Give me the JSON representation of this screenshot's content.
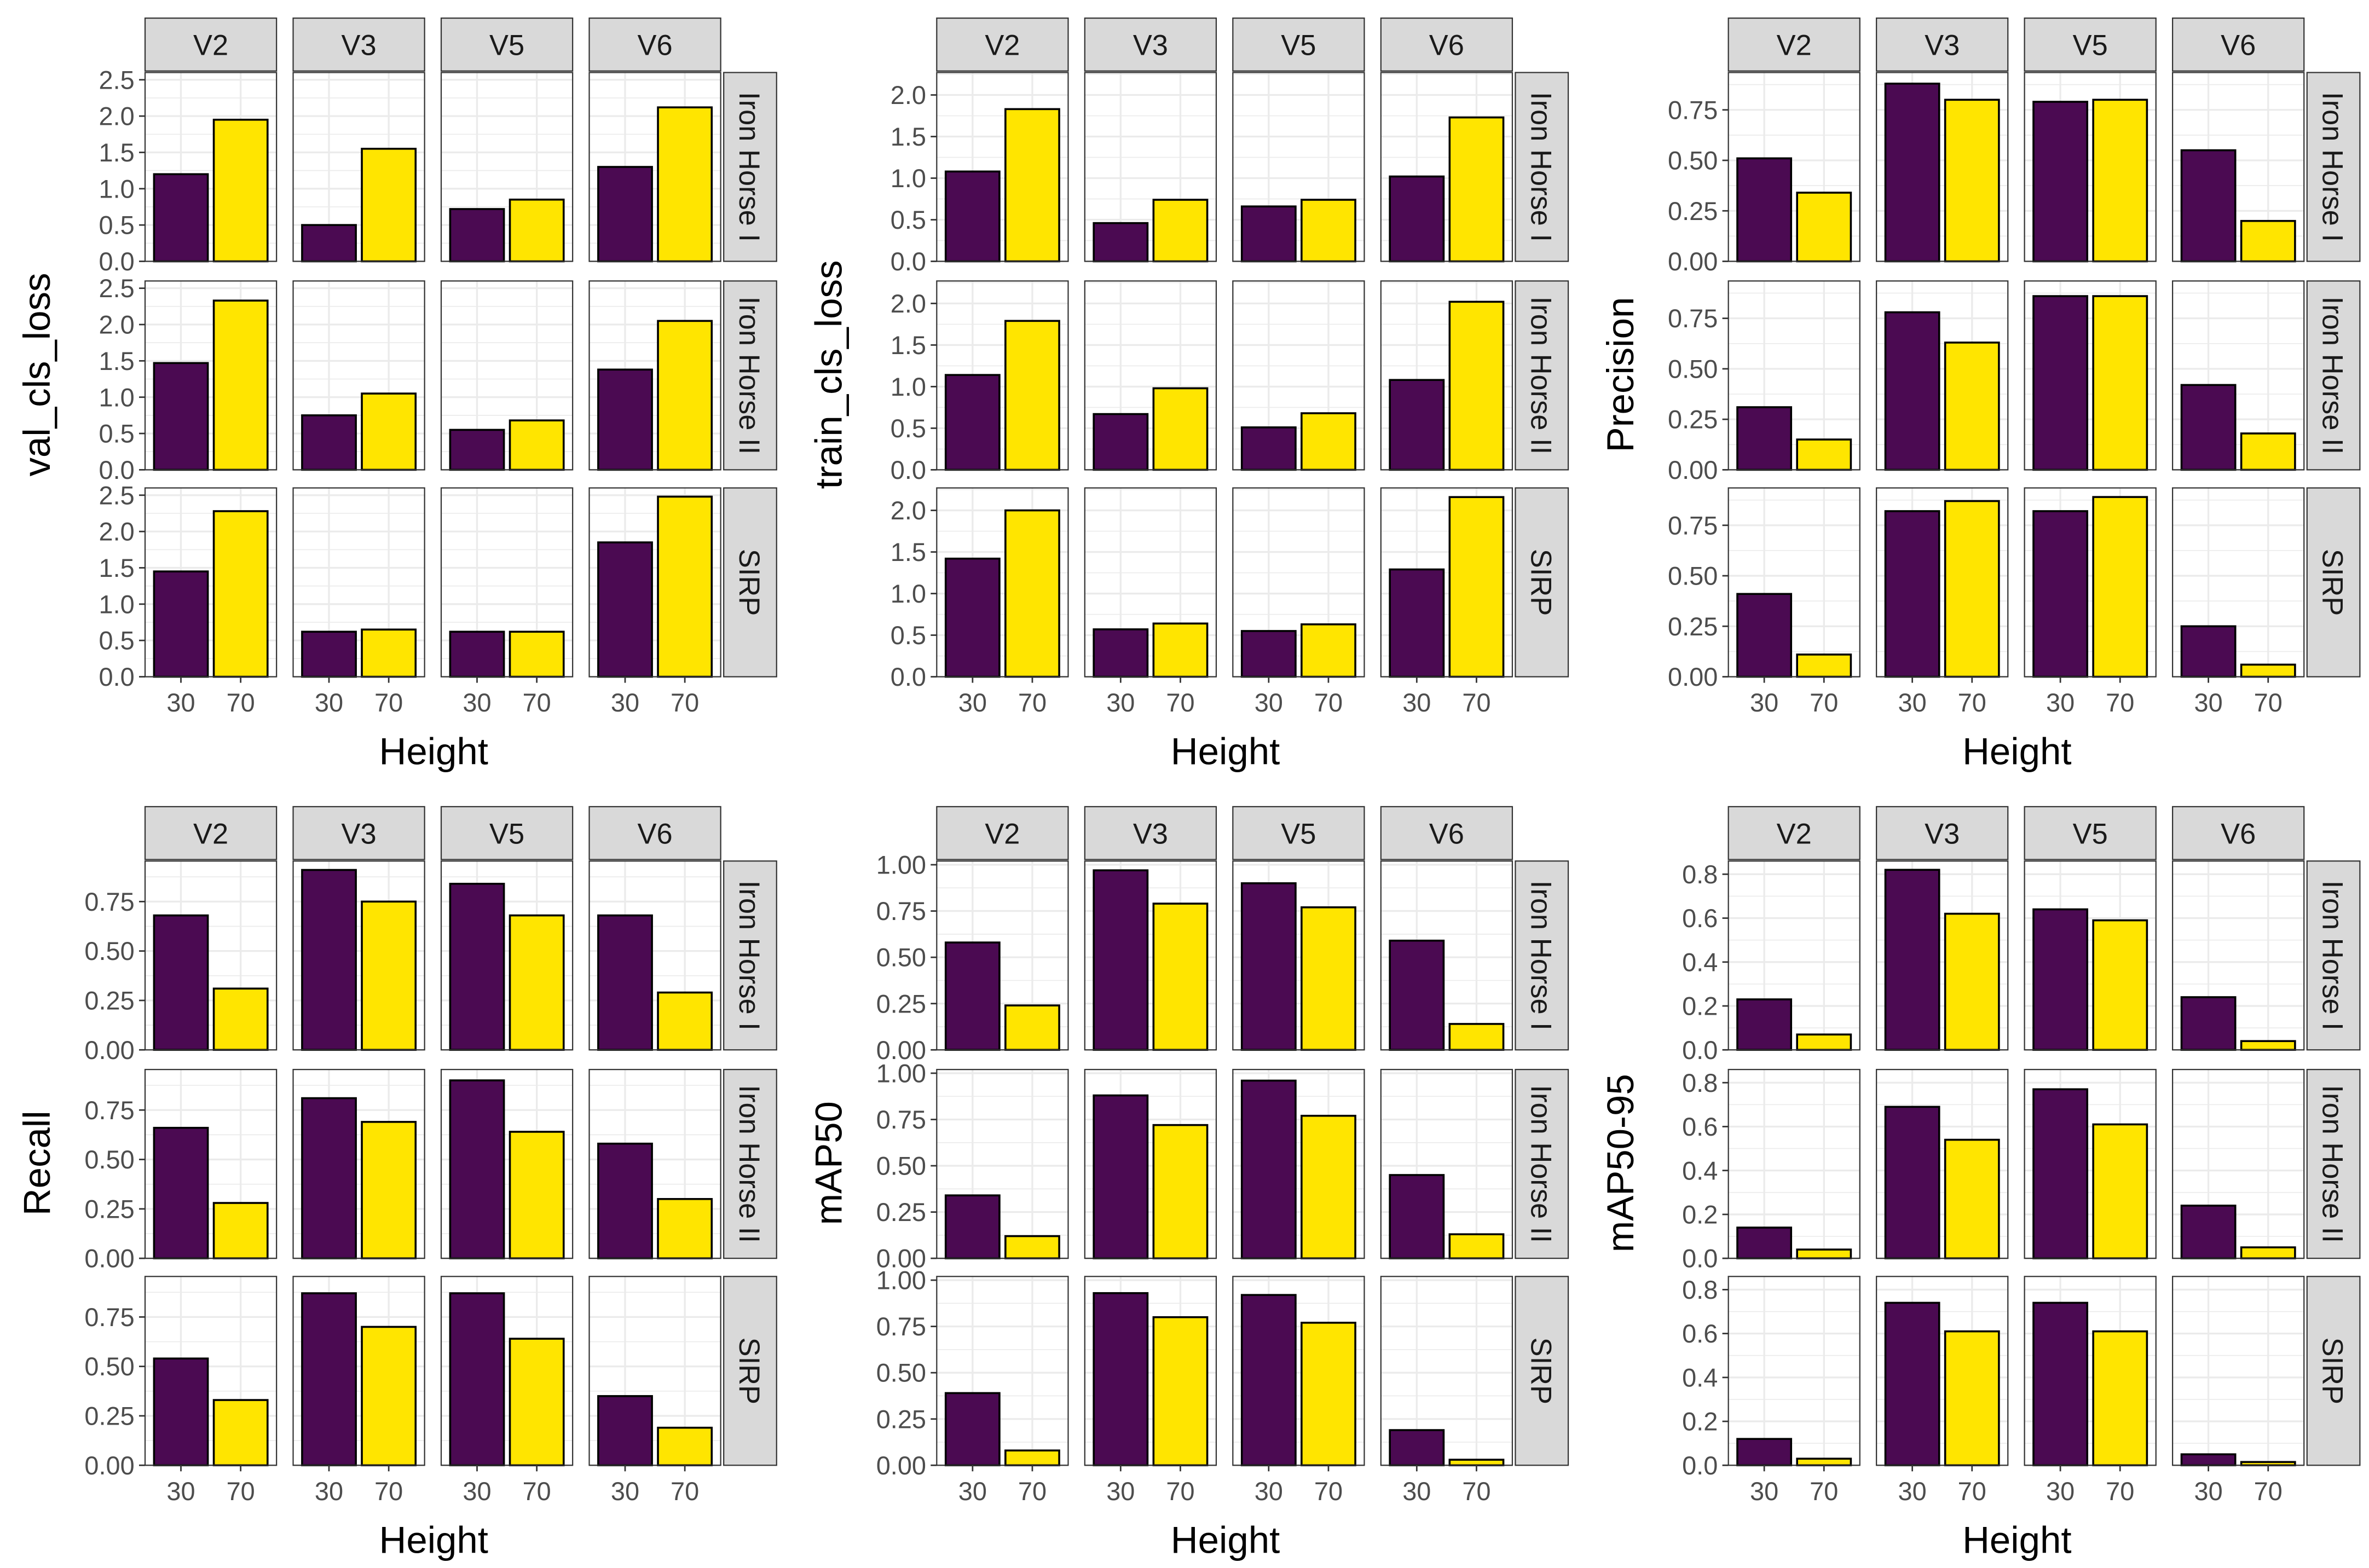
{
  "colors": {
    "30": "#4b0a52",
    "70": "#ffe500",
    "strip": "#d9d9d9",
    "grid": "#ebebeb",
    "border": "#333333"
  },
  "chart_data": [
    {
      "type": "bar",
      "ylabel": "val_cls_loss",
      "xlabel": "Height",
      "ylim": [
        0,
        2.6
      ],
      "yticks": [
        "0.0",
        "0.5",
        "1.0",
        "1.5",
        "2.0",
        "2.5"
      ],
      "ytick_values": [
        0,
        0.5,
        1,
        1.5,
        2,
        2.5
      ],
      "columns": [
        "V2",
        "V3",
        "V5",
        "V6"
      ],
      "rows": [
        "Iron Horse I",
        "Iron Horse II",
        "SIRP"
      ],
      "categories": [
        "30",
        "70"
      ],
      "values": [
        [
          [
            1.2,
            1.95
          ],
          [
            0.5,
            1.55
          ],
          [
            0.72,
            0.85
          ],
          [
            1.3,
            2.12
          ]
        ],
        [
          [
            1.47,
            2.33
          ],
          [
            0.75,
            1.05
          ],
          [
            0.55,
            0.68
          ],
          [
            1.38,
            2.05
          ]
        ],
        [
          [
            1.45,
            2.28
          ],
          [
            0.62,
            0.65
          ],
          [
            0.62,
            0.62
          ],
          [
            1.85,
            2.48
          ]
        ]
      ]
    },
    {
      "type": "bar",
      "ylabel": "train_cls_loss",
      "xlabel": "Height",
      "ylim": [
        0,
        2.27
      ],
      "yticks": [
        "0.0",
        "0.5",
        "1.0",
        "1.5",
        "2.0"
      ],
      "ytick_values": [
        0,
        0.5,
        1,
        1.5,
        2
      ],
      "columns": [
        "V2",
        "V3",
        "V5",
        "V6"
      ],
      "rows": [
        "Iron Horse I",
        "Iron Horse II",
        "SIRP"
      ],
      "categories": [
        "30",
        "70"
      ],
      "values": [
        [
          [
            1.08,
            1.83
          ],
          [
            0.46,
            0.74
          ],
          [
            0.66,
            0.74
          ],
          [
            1.02,
            1.73
          ]
        ],
        [
          [
            1.14,
            1.79
          ],
          [
            0.67,
            0.98
          ],
          [
            0.51,
            0.68
          ],
          [
            1.08,
            2.02
          ]
        ],
        [
          [
            1.42,
            2.0
          ],
          [
            0.57,
            0.64
          ],
          [
            0.55,
            0.63
          ],
          [
            1.29,
            2.16
          ]
        ]
      ]
    },
    {
      "type": "bar",
      "ylabel": "Precision",
      "xlabel": "Height",
      "ylim": [
        0,
        0.935
      ],
      "yticks": [
        "0.00",
        "0.25",
        "0.50",
        "0.75"
      ],
      "ytick_values": [
        0,
        0.25,
        0.5,
        0.75
      ],
      "columns": [
        "V2",
        "V3",
        "V5",
        "V6"
      ],
      "rows": [
        "Iron Horse I",
        "Iron Horse II",
        "SIRP"
      ],
      "categories": [
        "30",
        "70"
      ],
      "values": [
        [
          [
            0.51,
            0.34
          ],
          [
            0.88,
            0.8
          ],
          [
            0.79,
            0.8
          ],
          [
            0.55,
            0.2
          ]
        ],
        [
          [
            0.31,
            0.15
          ],
          [
            0.78,
            0.63
          ],
          [
            0.86,
            0.86
          ],
          [
            0.42,
            0.18
          ]
        ],
        [
          [
            0.41,
            0.11
          ],
          [
            0.82,
            0.87
          ],
          [
            0.82,
            0.89
          ],
          [
            0.25,
            0.06
          ]
        ]
      ]
    },
    {
      "type": "bar",
      "ylabel": "Recall",
      "xlabel": "Height",
      "ylim": [
        0,
        0.955
      ],
      "yticks": [
        "0.00",
        "0.25",
        "0.50",
        "0.75"
      ],
      "ytick_values": [
        0,
        0.25,
        0.5,
        0.75
      ],
      "columns": [
        "V2",
        "V3",
        "V5",
        "V6"
      ],
      "rows": [
        "Iron Horse I",
        "Iron Horse II",
        "SIRP"
      ],
      "categories": [
        "30",
        "70"
      ],
      "values": [
        [
          [
            0.68,
            0.31
          ],
          [
            0.91,
            0.75
          ],
          [
            0.84,
            0.68
          ],
          [
            0.68,
            0.29
          ]
        ],
        [
          [
            0.66,
            0.28
          ],
          [
            0.81,
            0.69
          ],
          [
            0.9,
            0.64
          ],
          [
            0.58,
            0.3
          ]
        ],
        [
          [
            0.54,
            0.33
          ],
          [
            0.87,
            0.7
          ],
          [
            0.87,
            0.64
          ],
          [
            0.35,
            0.19
          ]
        ]
      ]
    },
    {
      "type": "bar",
      "ylabel": "mAP50",
      "xlabel": "Height",
      "ylim": [
        0,
        1.02
      ],
      "yticks": [
        "0.00",
        "0.25",
        "0.50",
        "0.75",
        "1.00"
      ],
      "ytick_values": [
        0,
        0.25,
        0.5,
        0.75,
        1
      ],
      "columns": [
        "V2",
        "V3",
        "V5",
        "V6"
      ],
      "rows": [
        "Iron Horse I",
        "Iron Horse II",
        "SIRP"
      ],
      "categories": [
        "30",
        "70"
      ],
      "values": [
        [
          [
            0.58,
            0.24
          ],
          [
            0.97,
            0.79
          ],
          [
            0.9,
            0.77
          ],
          [
            0.59,
            0.14
          ]
        ],
        [
          [
            0.34,
            0.12
          ],
          [
            0.88,
            0.72
          ],
          [
            0.96,
            0.77
          ],
          [
            0.45,
            0.13
          ]
        ],
        [
          [
            0.39,
            0.08
          ],
          [
            0.93,
            0.8
          ],
          [
            0.92,
            0.77
          ],
          [
            0.19,
            0.03
          ]
        ]
      ]
    },
    {
      "type": "bar",
      "ylabel": "mAP50-95",
      "xlabel": "Height",
      "ylim": [
        0,
        0.86
      ],
      "yticks": [
        "0.0",
        "0.2",
        "0.4",
        "0.6",
        "0.8"
      ],
      "ytick_values": [
        0,
        0.2,
        0.4,
        0.6,
        0.8
      ],
      "columns": [
        "V2",
        "V3",
        "V5",
        "V6"
      ],
      "rows": [
        "Iron Horse I",
        "Iron Horse II",
        "SIRP"
      ],
      "categories": [
        "30",
        "70"
      ],
      "values": [
        [
          [
            0.23,
            0.07
          ],
          [
            0.82,
            0.62
          ],
          [
            0.64,
            0.59
          ],
          [
            0.24,
            0.04
          ]
        ],
        [
          [
            0.14,
            0.04
          ],
          [
            0.69,
            0.54
          ],
          [
            0.77,
            0.61
          ],
          [
            0.24,
            0.05
          ]
        ],
        [
          [
            0.12,
            0.03
          ],
          [
            0.74,
            0.61
          ],
          [
            0.74,
            0.61
          ],
          [
            0.05,
            0.015
          ]
        ]
      ]
    }
  ]
}
